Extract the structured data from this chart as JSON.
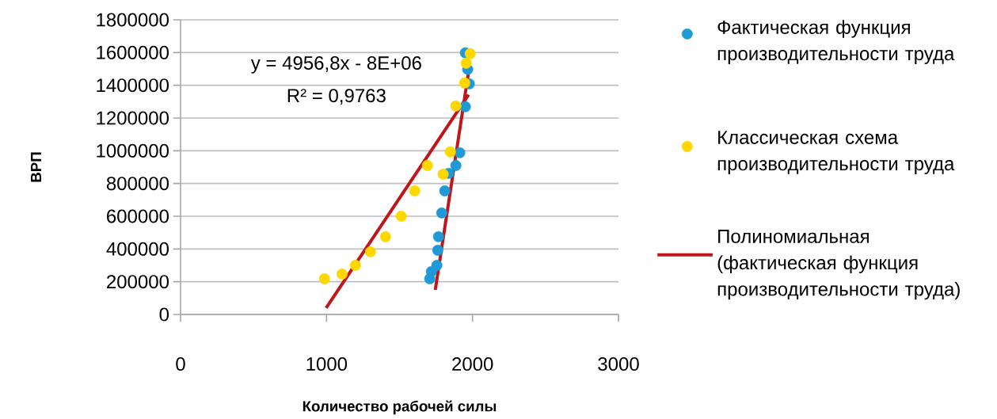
{
  "chart_data": {
    "type": "scatter",
    "xlabel": "Количество рабочей силы",
    "ylabel": "ВРП",
    "annotations": [
      "y = 4956,8x - 8E+06",
      "R² = 0,9763"
    ],
    "xlim": [
      0,
      3000
    ],
    "xticks": [
      0,
      1000,
      2000,
      3000
    ],
    "ylim": [
      0,
      1800000
    ],
    "yticks": [
      0,
      200000,
      400000,
      600000,
      800000,
      1000000,
      1200000,
      1400000,
      1600000,
      1800000
    ],
    "grid": "y",
    "legend": "right",
    "marker": "circle",
    "series": [
      {
        "name": "Фактическая функция производительности труда",
        "color": "#1f9ad6",
        "x": [
          1707,
          1718,
          1756,
          1762,
          1767,
          1789,
          1810,
          1837,
          1886,
          1913,
          1951,
          1978,
          1967,
          1951
        ],
        "values": [
          218000,
          262000,
          300000,
          392000,
          475000,
          620000,
          755000,
          862000,
          910000,
          988000,
          1269000,
          1409000,
          1497000,
          1598000
        ]
      },
      {
        "name": "Классическая схема производительности труда",
        "color": "#ffd700",
        "x": [
          986,
          1106,
          1198,
          1301,
          1404,
          1512,
          1604,
          1691,
          1799,
          1848,
          1886,
          1946,
          1957,
          1984
        ],
        "values": [
          218000,
          247000,
          300000,
          383000,
          475000,
          600000,
          755000,
          910000,
          857000,
          993000,
          1274000,
          1414000,
          1535000,
          1593000
        ]
      },
      {
        "name": "Полиномиальная (фактическая функция производительности труда)",
        "type": "line",
        "marker": "none",
        "color": "#c0161b",
        "x": [
          1745,
          1978
        ],
        "values": [
          150000,
          1511000
        ]
      },
      {
        "type": "line",
        "marker": "none",
        "color": "#c0161b",
        "x": [
          997,
          1973
        ],
        "values": [
          39000,
          1342000
        ]
      }
    ]
  }
}
